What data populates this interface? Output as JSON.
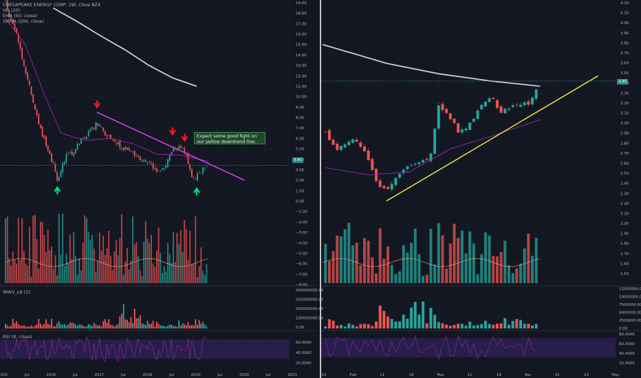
{
  "left_panel": {
    "legend": {
      "symbol_line": "CHESAPEAKE ENERGY CORP, 1W, Cboe BZX",
      "vol_line": "Vol (20)",
      "ema_line": "EMA (50, close)",
      "smma_line": "SMMA (200, close)"
    },
    "annotation": "Expect some good fight on our yellow downtrend line.",
    "price_ticks": [
      "19.00",
      "18.00",
      "17.00",
      "16.00",
      "15.00",
      "14.00",
      "13.00",
      "12.00",
      "11.00",
      "10.00",
      "9.00",
      "8.00",
      "7.00",
      "6.00",
      "5.00",
      "4.00",
      "3.00",
      "2.00",
      "1.00",
      "0.00",
      "−1.00",
      "−2.00",
      "−3.00",
      "−4.00",
      "−5.00",
      "−6.00",
      "−7.00",
      "−8.00"
    ],
    "last_price_label": "3.41",
    "wwv_title": "WWV_LB (2)",
    "wwv_ticks": [
      "400000000.00",
      "300000000.00",
      "200000000.00",
      "100000000.00",
      "0.00"
    ],
    "rsi_title": "RSI (8, close)",
    "rsi_ticks": [
      "60.0000",
      "40.0000",
      "20.0000"
    ],
    "x_ticks": [
      "2015",
      "Jul",
      "2016",
      "Jul",
      "2017",
      "Jul",
      "2018",
      "Jul",
      "2019",
      "Jul",
      "2020",
      "Jul",
      "2021"
    ]
  },
  "right_panel": {
    "price_ticks": [
      "4.20",
      "4.10",
      "4.00",
      "3.90",
      "3.80",
      "3.70",
      "3.60",
      "3.50",
      "3.40",
      "3.30",
      "3.20",
      "3.10",
      "3.00",
      "2.90",
      "2.80",
      "2.70",
      "2.60",
      "2.50",
      "2.40",
      "2.30",
      "2.20",
      "2.10",
      "2.00",
      "1.90",
      "1.80",
      "1.70",
      "1.60",
      "1.50"
    ],
    "last_price_label": "3.45",
    "wwv_ticks": [
      "12500000.00",
      "10000000.00",
      "7500000.00",
      "5000000.00",
      "2500000.00",
      "0.00"
    ],
    "rsi_ticks": [
      "80.0000",
      "60.0000",
      "40.0000",
      "20.0000"
    ],
    "x_ticks": [
      "23",
      "Feb",
      "11",
      "18",
      "Mar",
      "11",
      "18",
      "Apr",
      "15",
      "23",
      "May"
    ]
  },
  "colors": {
    "background": "#131722",
    "grid": "#1e2230",
    "up": "#26a69a",
    "down": "#ef5350",
    "ema": "#9c27b0",
    "smma": "#d0d0d0",
    "magenta_trend": "#e040fb",
    "yellow_trend": "#f5e642",
    "arrow_down": "#ff1a1a",
    "arrow_up": "#00e676",
    "rsi_band": "#2a1f4f"
  },
  "chart_data": [
    {
      "type": "candlestick",
      "symbol": "CHESAPEAKE ENERGY CORP",
      "timeframe": "1W",
      "exchange": "Cboe BZX",
      "xlim": [
        "2015-01",
        "2021-01"
      ],
      "ylim": [
        -8,
        19
      ],
      "last_price": 3.41,
      "close_path": [
        {
          "t": "2015-01",
          "v": 19.0
        },
        {
          "t": "2015-02",
          "v": 17.5
        },
        {
          "t": "2015-04",
          "v": 16.0
        },
        {
          "t": "2015-05",
          "v": 14.0
        },
        {
          "t": "2015-07",
          "v": 11.0
        },
        {
          "t": "2015-09",
          "v": 8.0
        },
        {
          "t": "2015-11",
          "v": 5.5
        },
        {
          "t": "2016-01",
          "v": 3.5
        },
        {
          "t": "2016-02",
          "v": 2.0
        },
        {
          "t": "2016-03",
          "v": 3.0
        },
        {
          "t": "2016-05",
          "v": 5.0
        },
        {
          "t": "2016-06",
          "v": 4.5
        },
        {
          "t": "2016-08",
          "v": 6.0
        },
        {
          "t": "2016-10",
          "v": 6.5
        },
        {
          "t": "2016-12",
          "v": 7.5
        },
        {
          "t": "2017-01",
          "v": 7.0
        },
        {
          "t": "2017-03",
          "v": 6.0
        },
        {
          "t": "2017-05",
          "v": 5.5
        },
        {
          "t": "2017-07",
          "v": 5.0
        },
        {
          "t": "2017-09",
          "v": 4.5
        },
        {
          "t": "2017-11",
          "v": 4.0
        },
        {
          "t": "2018-01",
          "v": 3.7
        },
        {
          "t": "2018-03",
          "v": 3.0
        },
        {
          "t": "2018-05",
          "v": 3.2
        },
        {
          "t": "2018-07",
          "v": 4.8
        },
        {
          "t": "2018-09",
          "v": 5.2
        },
        {
          "t": "2018-10",
          "v": 4.7
        },
        {
          "t": "2018-11",
          "v": 3.5
        },
        {
          "t": "2018-12",
          "v": 2.0
        },
        {
          "t": "2019-02",
          "v": 2.8
        },
        {
          "t": "2019-04",
          "v": 3.41
        }
      ],
      "ema_50_path": [
        {
          "t": "2015-01",
          "v": 17.5
        },
        {
          "t": "2015-06",
          "v": 15.0
        },
        {
          "t": "2015-11",
          "v": 10.0
        },
        {
          "t": "2016-03",
          "v": 6.5
        },
        {
          "t": "2016-09",
          "v": 5.8
        },
        {
          "t": "2017-03",
          "v": 6.0
        },
        {
          "t": "2017-09",
          "v": 5.5
        },
        {
          "t": "2018-03",
          "v": 4.5
        },
        {
          "t": "2018-09",
          "v": 4.4
        },
        {
          "t": "2019-04",
          "v": 3.8
        }
      ],
      "smma_200_path": [
        {
          "t": "2016-01",
          "v": 18.5
        },
        {
          "t": "2016-07",
          "v": 17.2
        },
        {
          "t": "2017-01",
          "v": 15.8
        },
        {
          "t": "2017-07",
          "v": 14.5
        },
        {
          "t": "2018-01",
          "v": 13.0
        },
        {
          "t": "2018-07",
          "v": 11.8
        },
        {
          "t": "2019-01",
          "v": 11.0
        }
      ],
      "trendline": {
        "from": {
          "t": "2016-12",
          "v": 8.5
        },
        "to": {
          "t": "2020-01",
          "v": 2.0
        }
      },
      "arrows_down": [
        {
          "t": "2016-12",
          "v": 9.0
        },
        {
          "t": "2018-07",
          "v": 6.4
        },
        {
          "t": "2018-10",
          "v": 5.8
        }
      ],
      "arrows_up": [
        {
          "t": "2016-02",
          "v": 1.3
        },
        {
          "t": "2019-01",
          "v": 1.2
        }
      ],
      "annotation": "Expect some good fight on our yellow downtrend line.",
      "volume_note": "Vol (20)",
      "indicators": [
        "WWV_LB (2)",
        "RSI (8, close)"
      ]
    },
    {
      "type": "candlestick",
      "timeframe": "1D",
      "xlim": [
        "2019-01-20",
        "2019-05-01"
      ],
      "ylim": [
        1.5,
        4.2
      ],
      "last_price": 3.45,
      "close_path": [
        {
          "t": "2019-01-21",
          "v": 2.95
        },
        {
          "t": "2019-01-25",
          "v": 2.8
        },
        {
          "t": "2019-01-31",
          "v": 2.9
        },
        {
          "t": "2019-02-05",
          "v": 2.7
        },
        {
          "t": "2019-02-08",
          "v": 2.45
        },
        {
          "t": "2019-02-11",
          "v": 2.4
        },
        {
          "t": "2019-02-15",
          "v": 2.55
        },
        {
          "t": "2019-02-20",
          "v": 2.65
        },
        {
          "t": "2019-02-26",
          "v": 2.7
        },
        {
          "t": "2019-03-01",
          "v": 3.2
        },
        {
          "t": "2019-03-05",
          "v": 3.1
        },
        {
          "t": "2019-03-08",
          "v": 2.95
        },
        {
          "t": "2019-03-12",
          "v": 3.05
        },
        {
          "t": "2019-03-15",
          "v": 3.2
        },
        {
          "t": "2019-03-19",
          "v": 3.3
        },
        {
          "t": "2019-03-22",
          "v": 3.15
        },
        {
          "t": "2019-03-26",
          "v": 3.2
        },
        {
          "t": "2019-03-29",
          "v": 3.2
        },
        {
          "t": "2019-04-02",
          "v": 3.25
        },
        {
          "t": "2019-04-05",
          "v": 3.45
        }
      ],
      "ema_50_path": [
        {
          "t": "2019-01-21",
          "v": 2.62
        },
        {
          "t": "2019-02-05",
          "v": 2.55
        },
        {
          "t": "2019-02-19",
          "v": 2.58
        },
        {
          "t": "2019-03-05",
          "v": 2.8
        },
        {
          "t": "2019-03-19",
          "v": 2.92
        },
        {
          "t": "2019-04-05",
          "v": 3.08
        }
      ],
      "smma_200_path": [
        {
          "t": "2019-01-20",
          "v": 3.8
        },
        {
          "t": "2019-02-11",
          "v": 3.62
        },
        {
          "t": "2019-03-01",
          "v": 3.52
        },
        {
          "t": "2019-03-19",
          "v": 3.45
        },
        {
          "t": "2019-04-05",
          "v": 3.4
        }
      ],
      "trendline": {
        "from": {
          "t": "2019-02-11",
          "v": 2.3
        },
        "to": {
          "t": "2019-04-25",
          "v": 3.5
        }
      },
      "indicators": [
        "WWV_LB (2)",
        "RSI (8, close)"
      ]
    }
  ]
}
